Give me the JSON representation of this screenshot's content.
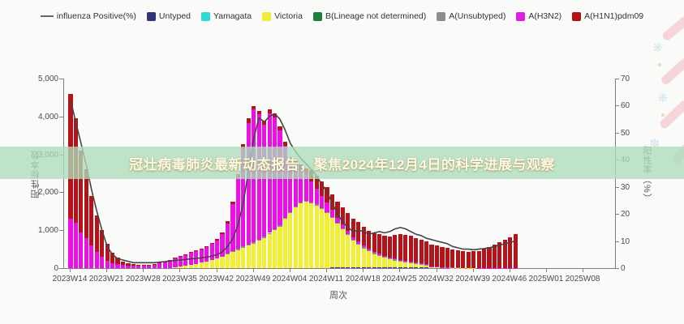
{
  "overlay": {
    "text": "冠壮病毒肺炎最新动态报告，聚焦2024年12月4日的科学进展与观察",
    "band_color": "rgba(173,221,186,0.78)",
    "text_color": "#fcfae6"
  },
  "legend": [
    {
      "label": "influenza Positive(%)",
      "color": "#666666",
      "type": "line"
    },
    {
      "label": "Untyped",
      "color": "#32327d",
      "type": "box"
    },
    {
      "label": "Yamagata",
      "color": "#2fd9d4",
      "type": "box"
    },
    {
      "label": "Victoria",
      "color": "#f0ec3a",
      "type": "box"
    },
    {
      "label": "B(Lineage not determined)",
      "color": "#188038",
      "type": "box"
    },
    {
      "label": "A(Unsubtyped)",
      "color": "#8c8c8c",
      "type": "box"
    },
    {
      "label": "A(H3N2)",
      "color": "#e01de0",
      "type": "box"
    },
    {
      "label": "A(H1N1)pdm09",
      "color": "#b01217",
      "type": "box"
    }
  ],
  "chart_data": {
    "type": "bar",
    "subtype": "stacked-bars-with-line",
    "title": "",
    "x_label": "周次",
    "y_left": {
      "label": "阳性标本数",
      "min": 0,
      "max": 5000,
      "tick_values": [
        0,
        1000,
        2000,
        3000,
        4000,
        5000
      ],
      "tick_labels": [
        "0",
        "1,000",
        "2,000",
        "3,000",
        "4,000",
        "5,000"
      ]
    },
    "y_right": {
      "label": "阳性率（%）",
      "min": 0,
      "max": 70,
      "tick_values": [
        0,
        10,
        20,
        30,
        40,
        50,
        60,
        70
      ],
      "tick_labels": [
        "0",
        "10",
        "20",
        "30",
        "40",
        "50",
        "60",
        "70"
      ]
    },
    "x_ticks": [
      {
        "label": "2023W14",
        "week": 0
      },
      {
        "label": "2023W21",
        "week": 7
      },
      {
        "label": "2023W28",
        "week": 14
      },
      {
        "label": "2023W35",
        "week": 21
      },
      {
        "label": "2023W42",
        "week": 28
      },
      {
        "label": "2023W49",
        "week": 35
      },
      {
        "label": "2024W04",
        "week": 42
      },
      {
        "label": "2024W11",
        "week": 49
      },
      {
        "label": "2024W18",
        "week": 56
      },
      {
        "label": "2024W25",
        "week": 63
      },
      {
        "label": "2024W32",
        "week": 70
      },
      {
        "label": "2024W39",
        "week": 77
      },
      {
        "label": "2024W46",
        "week": 84
      },
      {
        "label": "2025W01",
        "week": 91
      },
      {
        "label": "2025W08",
        "week": 98
      }
    ],
    "x_axis_total_weeks": 104,
    "weeks": [
      "2023W14",
      "2023W15",
      "2023W16",
      "2023W17",
      "2023W18",
      "2023W19",
      "2023W20",
      "2023W21",
      "2023W22",
      "2023W23",
      "2023W24",
      "2023W25",
      "2023W26",
      "2023W27",
      "2023W28",
      "2023W29",
      "2023W30",
      "2023W31",
      "2023W32",
      "2023W33",
      "2023W34",
      "2023W35",
      "2023W36",
      "2023W37",
      "2023W38",
      "2023W39",
      "2023W40",
      "2023W41",
      "2023W42",
      "2023W43",
      "2023W44",
      "2023W45",
      "2023W46",
      "2023W47",
      "2023W48",
      "2023W49",
      "2023W50",
      "2023W51",
      "2023W52",
      "2024W01",
      "2024W02",
      "2024W03",
      "2024W04",
      "2024W05",
      "2024W06",
      "2024W07",
      "2024W08",
      "2024W09",
      "2024W10",
      "2024W11",
      "2024W12",
      "2024W13",
      "2024W14",
      "2024W15",
      "2024W16",
      "2024W17",
      "2024W18",
      "2024W19",
      "2024W20",
      "2024W21",
      "2024W22",
      "2024W23",
      "2024W24",
      "2024W25",
      "2024W26",
      "2024W27",
      "2024W28",
      "2024W29",
      "2024W30",
      "2024W31",
      "2024W32",
      "2024W33",
      "2024W34",
      "2024W35",
      "2024W36",
      "2024W37",
      "2024W38",
      "2024W39",
      "2024W40",
      "2024W41",
      "2024W42",
      "2024W43",
      "2024W44",
      "2024W45",
      "2024W46",
      "2024W47"
    ],
    "series": [
      {
        "name": "Untyped",
        "color": "#32327d",
        "values": [
          0,
          0,
          0,
          0,
          0,
          0,
          0,
          0,
          0,
          0,
          0,
          0,
          0,
          0,
          0,
          0,
          0,
          0,
          0,
          0,
          0,
          0,
          0,
          0,
          0,
          0,
          0,
          0,
          0,
          0,
          0,
          0,
          0,
          0,
          0,
          0,
          0,
          0,
          0,
          0,
          0,
          0,
          0,
          0,
          0,
          0,
          0,
          0,
          0,
          0,
          20,
          20,
          20,
          20,
          20,
          20,
          20,
          20,
          20,
          20,
          20,
          20,
          20,
          20,
          20,
          20,
          20,
          20,
          20,
          0,
          0,
          0,
          0,
          0,
          0,
          0,
          0,
          0,
          0,
          0,
          0,
          0,
          0,
          0,
          0,
          0
        ]
      },
      {
        "name": "Yamagata",
        "color": "#2fd9d4",
        "values": [
          0,
          0,
          0,
          0,
          0,
          0,
          0,
          0,
          0,
          0,
          0,
          0,
          0,
          0,
          0,
          0,
          0,
          0,
          0,
          0,
          0,
          0,
          0,
          0,
          0,
          0,
          0,
          0,
          0,
          0,
          0,
          0,
          0,
          0,
          0,
          0,
          0,
          0,
          0,
          0,
          0,
          0,
          0,
          0,
          0,
          0,
          0,
          0,
          0,
          0,
          0,
          0,
          0,
          0,
          0,
          0,
          0,
          0,
          0,
          0,
          0,
          0,
          0,
          0,
          0,
          0,
          0,
          0,
          0,
          0,
          0,
          0,
          0,
          0,
          0,
          0,
          0,
          0,
          0,
          0,
          0,
          0,
          0,
          0,
          0,
          0
        ]
      },
      {
        "name": "Victoria",
        "color": "#f2ee35",
        "values": [
          0,
          0,
          0,
          0,
          0,
          0,
          0,
          0,
          0,
          0,
          0,
          0,
          0,
          0,
          0,
          0,
          0,
          0,
          0,
          0,
          30,
          50,
          70,
          90,
          110,
          140,
          170,
          210,
          250,
          300,
          360,
          420,
          480,
          540,
          600,
          650,
          720,
          800,
          900,
          1000,
          1100,
          1300,
          1450,
          1600,
          1700,
          1750,
          1700,
          1650,
          1550,
          1450,
          1300,
          1150,
          1000,
          850,
          700,
          600,
          500,
          420,
          350,
          300,
          250,
          210,
          180,
          150,
          120,
          100,
          80,
          60,
          50,
          40,
          30,
          20,
          15,
          10,
          10,
          5,
          5,
          5,
          0,
          0,
          0,
          0,
          0,
          0,
          0,
          0
        ]
      },
      {
        "name": "B(Lineage not determined)",
        "color": "#188038",
        "values": [
          0,
          0,
          0,
          0,
          0,
          0,
          0,
          0,
          0,
          0,
          0,
          0,
          0,
          0,
          0,
          0,
          0,
          0,
          0,
          0,
          0,
          0,
          0,
          0,
          0,
          0,
          0,
          0,
          0,
          0,
          0,
          0,
          0,
          0,
          0,
          0,
          0,
          0,
          0,
          0,
          0,
          0,
          0,
          0,
          0,
          0,
          0,
          0,
          0,
          0,
          0,
          0,
          0,
          0,
          0,
          0,
          0,
          0,
          0,
          0,
          0,
          0,
          0,
          0,
          0,
          0,
          0,
          0,
          0,
          0,
          0,
          0,
          0,
          0,
          0,
          0,
          0,
          0,
          0,
          0,
          0,
          0,
          0,
          0,
          0,
          0
        ]
      },
      {
        "name": "A(Unsubtyped)",
        "color": "#8c8c8c",
        "values": [
          0,
          0,
          0,
          0,
          0,
          0,
          0,
          0,
          0,
          0,
          0,
          0,
          0,
          0,
          0,
          0,
          0,
          0,
          0,
          0,
          0,
          0,
          0,
          0,
          0,
          0,
          0,
          0,
          0,
          0,
          20,
          20,
          30,
          30,
          30,
          30,
          30,
          30,
          30,
          30,
          30,
          30,
          30,
          30,
          30,
          30,
          30,
          30,
          30,
          30,
          30,
          30,
          30,
          30,
          30,
          30,
          30,
          30,
          30,
          30,
          30,
          30,
          30,
          30,
          30,
          30,
          30,
          30,
          30,
          0,
          0,
          0,
          0,
          0,
          0,
          0,
          0,
          0,
          0,
          0,
          0,
          0,
          0,
          0,
          0,
          0
        ]
      },
      {
        "name": "A(H3N2)",
        "color": "#ea10e6",
        "values": [
          1300,
          1200,
          950,
          800,
          600,
          420,
          300,
          200,
          130,
          100,
          80,
          70,
          60,
          60,
          70,
          80,
          100,
          130,
          160,
          200,
          230,
          260,
          290,
          320,
          340,
          360,
          390,
          430,
          480,
          600,
          800,
          1250,
          1900,
          2600,
          3200,
          3500,
          3300,
          2950,
          3150,
          2950,
          2500,
          1900,
          1350,
          1100,
          850,
          700,
          550,
          420,
          320,
          250,
          180,
          130,
          100,
          80,
          60,
          50,
          40,
          35,
          30,
          25,
          25,
          20,
          20,
          20,
          15,
          15,
          10,
          10,
          10,
          10,
          5,
          5,
          5,
          5,
          5,
          5,
          5,
          5,
          5,
          5,
          5,
          5,
          5,
          5,
          5,
          5
        ]
      },
      {
        "name": "A(H1N1)pdm09",
        "color": "#b5121a",
        "values": [
          3300,
          2750,
          2150,
          1800,
          1300,
          980,
          700,
          450,
          280,
          170,
          100,
          60,
          40,
          25,
          15,
          10,
          10,
          10,
          10,
          10,
          10,
          10,
          10,
          15,
          15,
          20,
          20,
          25,
          30,
          40,
          50,
          60,
          70,
          90,
          120,
          100,
          100,
          100,
          100,
          100,
          100,
          100,
          100,
          150,
          150,
          150,
          300,
          330,
          380,
          400,
          420,
          430,
          450,
          480,
          500,
          520,
          500,
          480,
          500,
          520,
          540,
          560,
          620,
          680,
          700,
          680,
          650,
          620,
          600,
          580,
          560,
          540,
          520,
          480,
          450,
          430,
          420,
          430,
          450,
          500,
          560,
          620,
          680,
          740,
          800,
          900
        ]
      }
    ],
    "line": {
      "name": "influenza Positive(%)",
      "color": "#444444",
      "axis": "right",
      "values": [
        62,
        54,
        46,
        38,
        29,
        21,
        14,
        8,
        5,
        3.5,
        3,
        2.5,
        2,
        2,
        2,
        2,
        2,
        2.2,
        2.4,
        2.6,
        2.8,
        3,
        3.2,
        3.4,
        3.6,
        3.8,
        4,
        4.5,
        5,
        6,
        8,
        11,
        16,
        24,
        36,
        48,
        55.5,
        54,
        56,
        57,
        55,
        51,
        46,
        43,
        40.5,
        38.5,
        36.5,
        34,
        31,
        28,
        24,
        20,
        17,
        15,
        13.5,
        14,
        13.5,
        12.5,
        13,
        13.5,
        13,
        13.5,
        14.5,
        15,
        14.5,
        13.5,
        12.5,
        12,
        11,
        10.5,
        10,
        9.5,
        9,
        8,
        7.5,
        7,
        7,
        6.8,
        7,
        7.2,
        7.5,
        8,
        8.5,
        9,
        9.5,
        10
      ]
    },
    "legend_position": "top",
    "grid": false
  }
}
